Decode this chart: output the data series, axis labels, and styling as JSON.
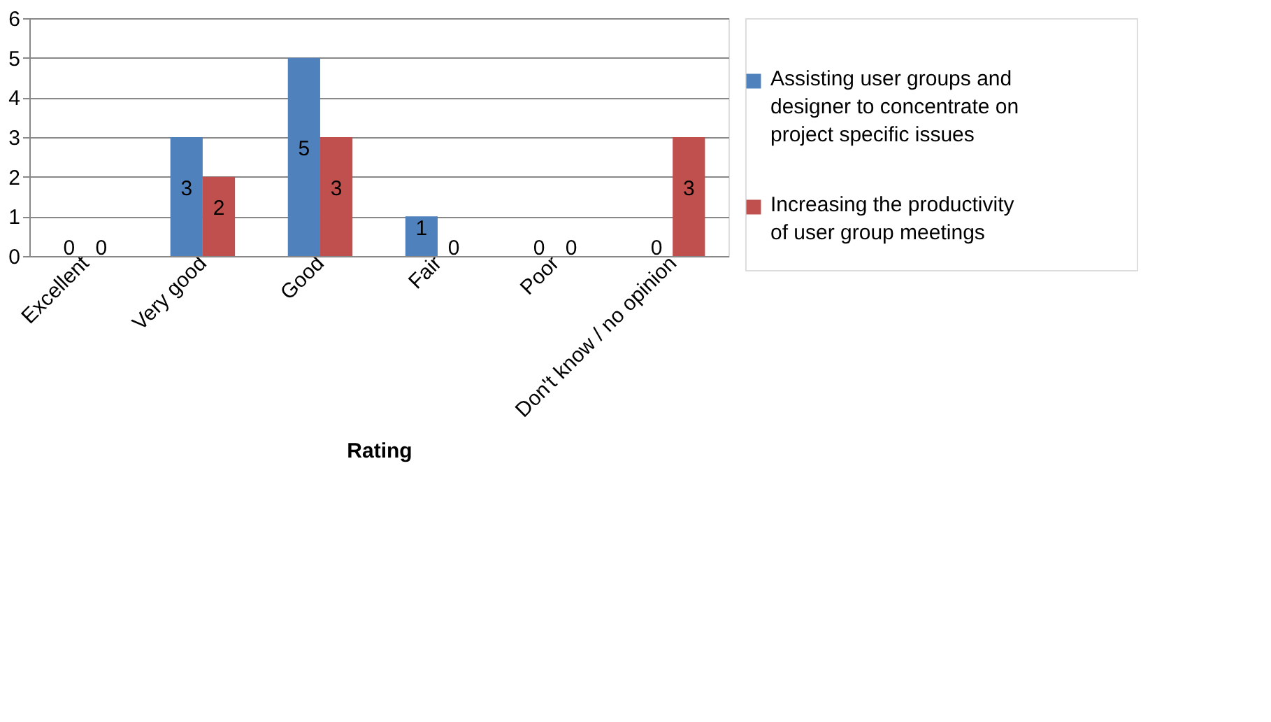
{
  "chart_data": {
    "type": "bar",
    "xlabel": "Rating",
    "categories": [
      "Excellent",
      "Very good",
      "Good",
      "Fair",
      "Poor",
      "Don't know / no opinion"
    ],
    "series": [
      {
        "name": "Assisting user groups and designer to concentrate on project specific issues",
        "color": "#4f81bd",
        "values": [
          0,
          3,
          5,
          1,
          0,
          0
        ]
      },
      {
        "name": "Increasing the productivity of user group meetings",
        "color": "#c0504d",
        "values": [
          0,
          2,
          3,
          0,
          0,
          3
        ]
      }
    ],
    "ylim": [
      0,
      6
    ],
    "yticks": [
      0,
      1,
      2,
      3,
      4,
      5,
      6
    ],
    "grid": "y",
    "data_labels": true,
    "legend": "right"
  }
}
